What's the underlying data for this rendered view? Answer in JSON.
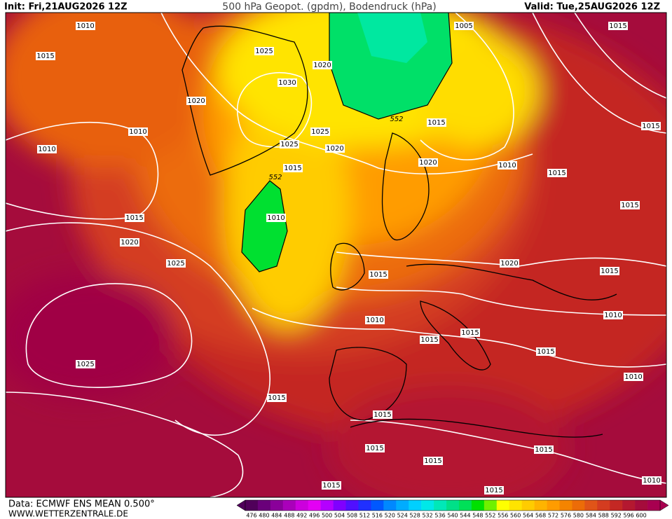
{
  "header": {
    "init": "Init: Fri,21AUG2026 12Z",
    "title": "500 hPa Geopot. (gpdm), Bodendruck (hPa)",
    "valid": "Valid: Tue,25AUG2026 12Z"
  },
  "footer": {
    "source": "Data: ECMWF ENS MEAN 0.500°",
    "site": "WWW.WETTERZENTRALE.DE"
  },
  "isobar_labels": [
    "1010",
    "1015",
    "1025",
    "1020",
    "1005",
    "1015",
    "1030",
    "1020",
    "1010",
    "1025",
    "1025",
    "1020",
    "1015",
    "1015",
    "1010",
    "1015",
    "1020",
    "1010",
    "1015",
    "1015",
    "1015",
    "1010",
    "1020",
    "1025",
    "1020",
    "1015",
    "1015",
    "1010",
    "1015",
    "1015",
    "1010",
    "1015",
    "1025",
    "1010",
    "1015",
    "1015",
    "1015",
    "1015",
    "1015",
    "1015",
    "1015",
    "1010"
  ],
  "contour_labels": [
    "552",
    "552"
  ],
  "colorbar": {
    "labels": [
      476,
      480,
      484,
      488,
      492,
      496,
      500,
      504,
      508,
      512,
      516,
      520,
      524,
      528,
      532,
      536,
      540,
      544,
      548,
      552,
      556,
      560,
      564,
      568,
      572,
      576,
      580,
      584,
      588,
      592,
      596,
      600
    ],
    "colors": [
      "#50005a",
      "#6a007a",
      "#8a009a",
      "#aa00ba",
      "#cc00dd",
      "#e400f4",
      "#b400ff",
      "#8000ff",
      "#5010ff",
      "#2030ff",
      "#0058ff",
      "#0088ff",
      "#00acff",
      "#00d0ff",
      "#00e8e8",
      "#00e8b8",
      "#00e088",
      "#00e058",
      "#00e000",
      "#70f000",
      "#ffff00",
      "#ffe400",
      "#ffcc00",
      "#ffb400",
      "#ff9c00",
      "#f48400",
      "#ec6c08",
      "#e05418",
      "#d43c20",
      "#c42824",
      "#b41830",
      "#a50c3c",
      "#a80050"
    ]
  }
}
